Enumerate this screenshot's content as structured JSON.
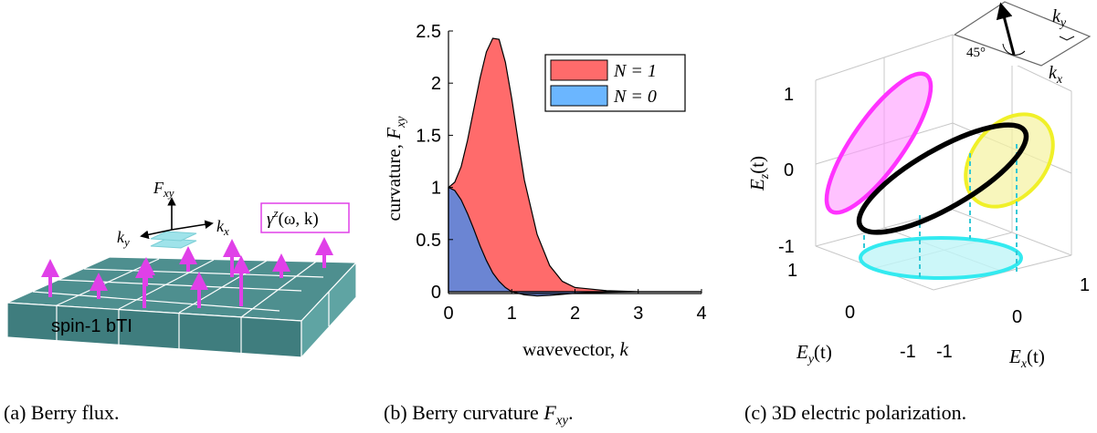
{
  "panel_a": {
    "axis_fxy": "F",
    "axis_fxy_sub": "xy",
    "axis_ky": "k",
    "axis_ky_sub": "y",
    "axis_kx": "k",
    "axis_kx_sub": "x",
    "gamma_label": "γ",
    "gamma_sup": "z",
    "gamma_args": "(ω, k)",
    "slab_label": "spin-1 bTI",
    "colors": {
      "slab_top": "#4e8f8f",
      "slab_front": "#3f7d7e",
      "slab_side": "#5fa4a3",
      "arrows": "#e040e8",
      "sheets": "#9fe3ea"
    }
  },
  "panel_b": {
    "ylabel_text": "curvature, ",
    "ylabel_var": "F",
    "ylabel_sub": "xy",
    "xlabel_text": "wavevector, ",
    "xlabel_var": "k",
    "legend_n1": "N = 1",
    "legend_n0": "N = 0",
    "colors": {
      "n1": "#ff6b6b",
      "n0": "#6b85d3",
      "n0_legend": "#6bb6ff"
    }
  },
  "chart_data": {
    "type": "area",
    "xlabel": "wavevector, k",
    "ylabel": "curvature, F_xy",
    "xlim": [
      0,
      4
    ],
    "ylim": [
      -0.05,
      2.5
    ],
    "xticks": [
      "0",
      "1",
      "2",
      "3",
      "4"
    ],
    "yticks": [
      "0",
      "0.5",
      "1",
      "1.5",
      "2",
      "2.5"
    ],
    "legend": "top-right",
    "series": [
      {
        "name": "N = 1",
        "x": [
          0,
          0.1,
          0.2,
          0.3,
          0.4,
          0.5,
          0.6,
          0.7,
          0.8,
          0.9,
          1.0,
          1.1,
          1.2,
          1.4,
          1.6,
          1.8,
          2.0,
          2.5,
          3.0,
          3.5,
          4.0
        ],
        "y": [
          1.0,
          1.05,
          1.2,
          1.45,
          1.75,
          2.05,
          2.3,
          2.43,
          2.42,
          2.2,
          1.85,
          1.45,
          1.07,
          0.55,
          0.25,
          0.1,
          0.04,
          0.01,
          0.0,
          0.0,
          0.0
        ]
      },
      {
        "name": "N = 0",
        "x": [
          0,
          0.1,
          0.2,
          0.3,
          0.4,
          0.5,
          0.6,
          0.7,
          0.8,
          0.9,
          1.0,
          1.2,
          1.4,
          1.6,
          1.8,
          2.0,
          2.5,
          3.0,
          3.5,
          4.0
        ],
        "y": [
          1.0,
          0.97,
          0.88,
          0.75,
          0.6,
          0.44,
          0.3,
          0.18,
          0.1,
          0.04,
          0.0,
          -0.03,
          -0.04,
          -0.035,
          -0.025,
          -0.015,
          -0.005,
          0.0,
          0.0,
          0.0
        ]
      }
    ]
  },
  "panel_c": {
    "z_ticks": [
      "1",
      "0",
      "-1"
    ],
    "y_ticks": [
      "1",
      "0",
      "-1"
    ],
    "x_ticks": [
      "-1",
      "0",
      "1"
    ],
    "zlabel_var": "E",
    "zlabel_sub": "z",
    "zlabel_arg": "(t)",
    "ylabel_var": "E",
    "ylabel_sub": "y",
    "ylabel_arg": "(t)",
    "xlabel_var": "E",
    "xlabel_sub": "x",
    "xlabel_arg": "(t)",
    "inset_angle": "45°",
    "inset_ky": "k",
    "inset_ky_sub": "y",
    "inset_kx": "k",
    "inset_kx_sub": "x",
    "colors": {
      "magenta": "#ff33ff",
      "yellow": "#f0f028",
      "cyan": "#33eaf0",
      "black": "#000000"
    }
  },
  "captions": {
    "a": "(a) Berry flux.",
    "b_prefix": "(b) Berry curvature ",
    "b_var": "F",
    "b_sub": "xy",
    "b_suffix": ".",
    "c": "(c) 3D electric polarization."
  }
}
